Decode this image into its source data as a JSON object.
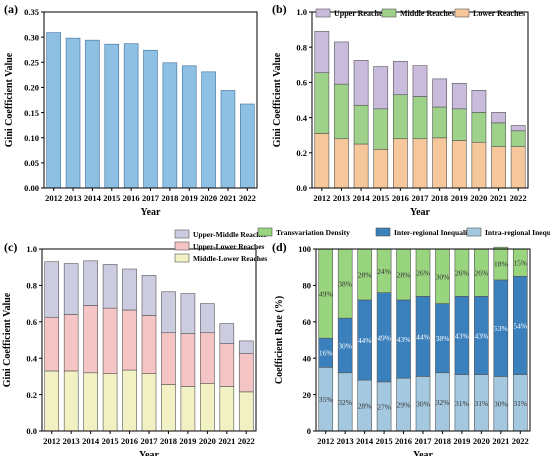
{
  "colors": {
    "a_bar": "#8ec0e4",
    "a_stroke": "#3d6e9b",
    "upper_reaches": "#c8bbdc",
    "middle_reaches": "#9ed28a",
    "lower_reaches": "#f7c79c",
    "upper_middle": "#cccce0",
    "upper_lower": "#f5c4c4",
    "middle_lower": "#f1f1c4",
    "transvariation": "#99d47f",
    "inter_regional": "#3a80bd",
    "intra_regional": "#a4c8e0"
  },
  "chart_data": [
    {
      "type": "bar",
      "panel_label": "(a)",
      "categories": [
        "2012",
        "2013",
        "2014",
        "2015",
        "2016",
        "2017",
        "2018",
        "2019",
        "2020",
        "2021",
        "2022"
      ],
      "series": [
        {
          "values": [
            0.309,
            0.298,
            0.294,
            0.286,
            0.287,
            0.274,
            0.249,
            0.243,
            0.231,
            0.194,
            0.167
          ]
        }
      ],
      "xlabel": "Year",
      "ylabel": "Gini Coefficient Value",
      "ylim": [
        0,
        0.35
      ],
      "yticks": [
        "0.00",
        "0.05",
        "0.10",
        "0.15",
        "0.20",
        "0.25",
        "0.30",
        "0.35"
      ]
    },
    {
      "type": "bar",
      "stacked": true,
      "panel_label": "(b)",
      "categories": [
        "2012",
        "2013",
        "2014",
        "2015",
        "2016",
        "2017",
        "2018",
        "2019",
        "2020",
        "2021",
        "2022"
      ],
      "series": [
        {
          "name": "Lower Reaches",
          "values": [
            0.31,
            0.28,
            0.25,
            0.22,
            0.28,
            0.28,
            0.285,
            0.27,
            0.26,
            0.235,
            0.235
          ]
        },
        {
          "name": "Middle Reaches",
          "values": [
            0.345,
            0.31,
            0.22,
            0.23,
            0.25,
            0.24,
            0.175,
            0.18,
            0.17,
            0.135,
            0.09
          ]
        },
        {
          "name": "Upper Reaches",
          "values": [
            0.235,
            0.24,
            0.255,
            0.24,
            0.19,
            0.175,
            0.16,
            0.145,
            0.125,
            0.06,
            0.03
          ]
        }
      ],
      "legend_order": [
        "Upper Reaches",
        "Middle Reaches",
        "Lower Reaches"
      ],
      "xlabel": "Year",
      "ylabel": "Gini Coefficient Value",
      "ylim": [
        0,
        1.0
      ],
      "yticks": [
        "0.0",
        "0.2",
        "0.4",
        "0.6",
        "0.8",
        "1.0"
      ]
    },
    {
      "type": "bar",
      "stacked": true,
      "panel_label": "(c)",
      "categories": [
        "2012",
        "2013",
        "2014",
        "2015",
        "2016",
        "2017",
        "2018",
        "2019",
        "2020",
        "2021",
        "2022"
      ],
      "series": [
        {
          "name": "Middle-Lower Reaches",
          "values": [
            0.33,
            0.33,
            0.32,
            0.315,
            0.335,
            0.315,
            0.255,
            0.245,
            0.26,
            0.245,
            0.215
          ]
        },
        {
          "name": "Upper-Lower Reaches",
          "values": [
            0.295,
            0.31,
            0.37,
            0.36,
            0.33,
            0.32,
            0.285,
            0.29,
            0.28,
            0.235,
            0.21
          ]
        },
        {
          "name": "Upper-Middle Reaches",
          "values": [
            0.305,
            0.28,
            0.245,
            0.24,
            0.225,
            0.22,
            0.225,
            0.22,
            0.16,
            0.11,
            0.07
          ]
        }
      ],
      "legend_order": [
        "Upper-Middle Reaches",
        "Upper-Lower Reaches",
        "Middle-Lower Reaches"
      ],
      "xlabel": "Year",
      "ylabel": "Gini Coefficient Value",
      "ylim": [
        0,
        1.0
      ],
      "yticks": [
        "0.0",
        "0.2",
        "0.4",
        "0.6",
        "0.8",
        "1.0"
      ]
    },
    {
      "type": "bar",
      "stacked": true,
      "panel_label": "(d)",
      "categories": [
        "2012",
        "2013",
        "2014",
        "2015",
        "2016",
        "2017",
        "2018",
        "2019",
        "2020",
        "2021",
        "2022"
      ],
      "series": [
        {
          "name": "Intra-regional Inequality",
          "values": [
            35,
            32,
            28,
            27,
            29,
            30,
            32,
            31,
            31,
            30,
            31
          ],
          "labels": [
            "35%",
            "32%",
            "28%",
            "27%",
            "29%",
            "30%",
            "32%",
            "31%",
            "31%",
            "30%",
            "31%"
          ]
        },
        {
          "name": "Inter-regional Inequality",
          "values": [
            16,
            30,
            44,
            49,
            43,
            44,
            38,
            43,
            43,
            53,
            54
          ],
          "labels": [
            "16%",
            "30%",
            "44%",
            "49%",
            "43%",
            "44%",
            "38%",
            "43%",
            "43%",
            "53%",
            "54%"
          ]
        },
        {
          "name": "Transvariation Density",
          "values": [
            49,
            38,
            28,
            24,
            28,
            26,
            30,
            26,
            26,
            18,
            15
          ],
          "labels": [
            "49%",
            "38%",
            "28%",
            "24%",
            "28%",
            "26%",
            "30%",
            "26%",
            "26%",
            "18%",
            "15%"
          ]
        }
      ],
      "legend_order": [
        "Transvariation Density",
        "Inter-regional Inequality",
        "Intra-regional Inequality"
      ],
      "xlabel": "Year",
      "ylabel": "Coefficient Rate (%)",
      "ylim": [
        0,
        100
      ],
      "yticks": [
        "0",
        "20",
        "40",
        "60",
        "80",
        "100"
      ]
    }
  ]
}
